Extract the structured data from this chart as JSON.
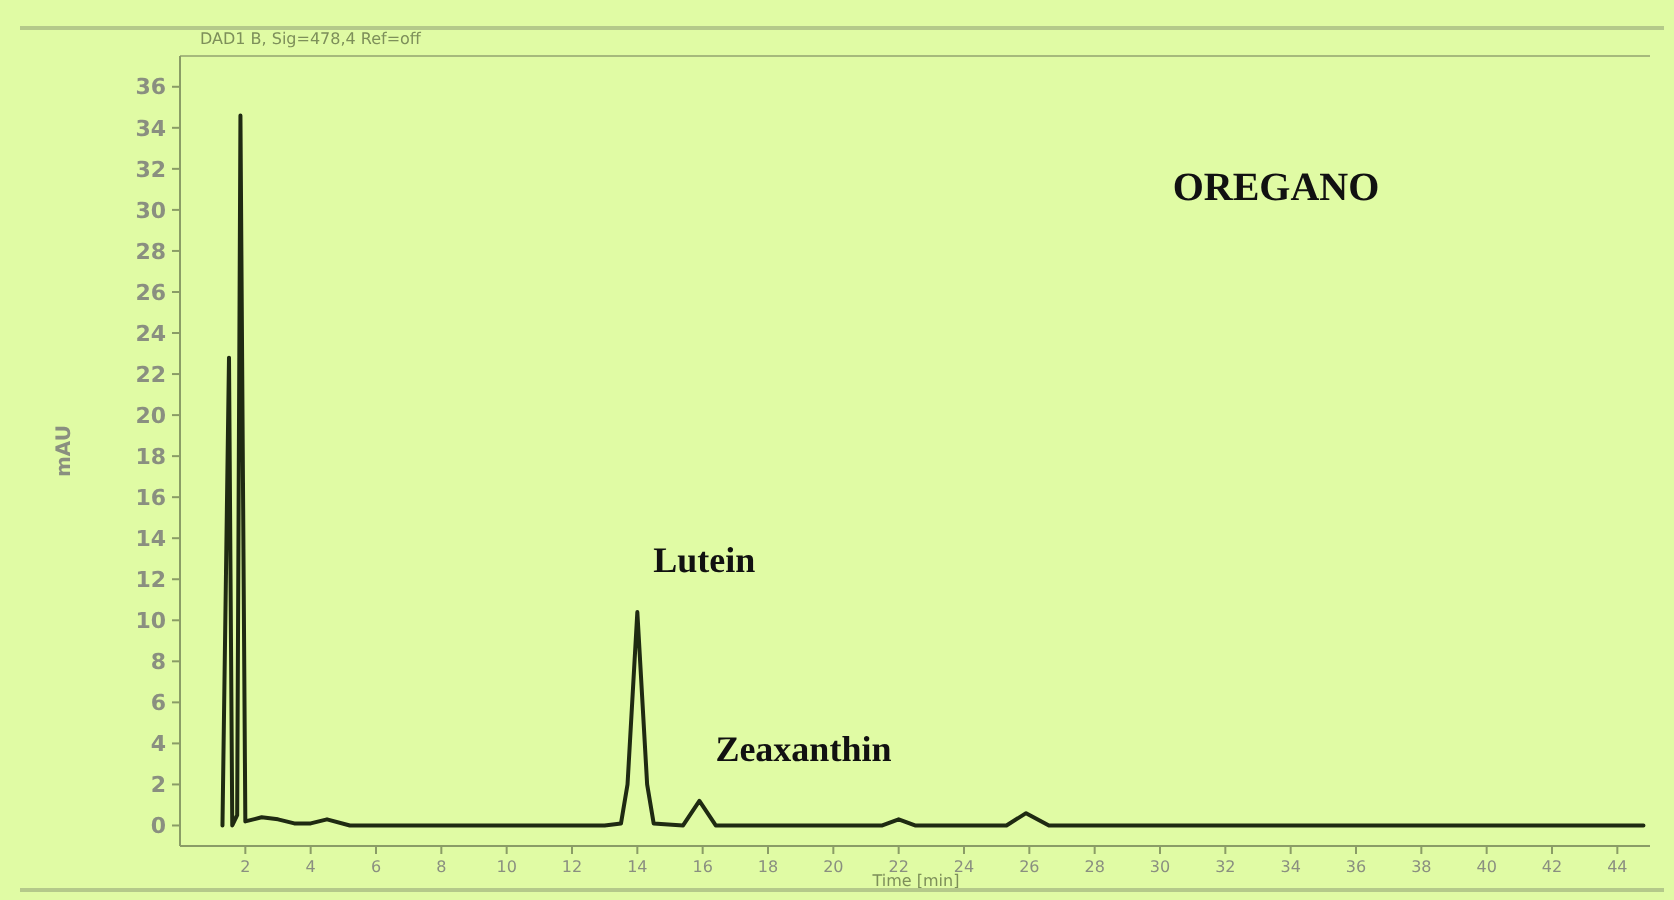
{
  "chart_data": {
    "type": "line",
    "subtitle": "DAD1 B, Sig=478,4 Ref=off",
    "xlabel": "Time [min]",
    "ylabel": "mAU",
    "annotations": [
      "OREGANO",
      {
        "text": "Lutein",
        "x": 14,
        "y": 10.4
      },
      {
        "text": "Zeaxanthin",
        "x": 15.9,
        "y": 1.2
      }
    ],
    "series": [
      {
        "color": "#1f2a12",
        "x": [
          1.3,
          1.5,
          1.6,
          1.75,
          1.85,
          2.0,
          2.5,
          3,
          3.5,
          4,
          4.5,
          5.2,
          8,
          13,
          13.5,
          13.7,
          14.0,
          14.3,
          14.5,
          15.4,
          15.9,
          16.4,
          21.5,
          22,
          22.5,
          25.3,
          25.9,
          26.6,
          44.8
        ],
        "values": [
          0,
          22.8,
          0,
          0.5,
          34.6,
          0.2,
          0.4,
          0.3,
          0.1,
          0.1,
          0.3,
          0,
          0,
          0,
          0.1,
          2,
          10.4,
          2,
          0.1,
          0,
          1.2,
          0,
          0,
          0.3,
          0,
          0,
          0.6,
          0,
          0
        ]
      }
    ],
    "xlim": [
      0,
      45
    ],
    "xticks": [
      2,
      4,
      6,
      8,
      10,
      12,
      14,
      16,
      18,
      20,
      22,
      24,
      26,
      28,
      30,
      32,
      34,
      36,
      38,
      40,
      42,
      44
    ],
    "ylim": [
      -1,
      37.5
    ],
    "yticks": [
      0,
      2,
      4,
      6,
      8,
      10,
      12,
      14,
      16,
      18,
      20,
      22,
      24,
      26,
      28,
      30,
      32,
      34,
      36
    ],
    "marker": "none",
    "line_style": "solid"
  }
}
